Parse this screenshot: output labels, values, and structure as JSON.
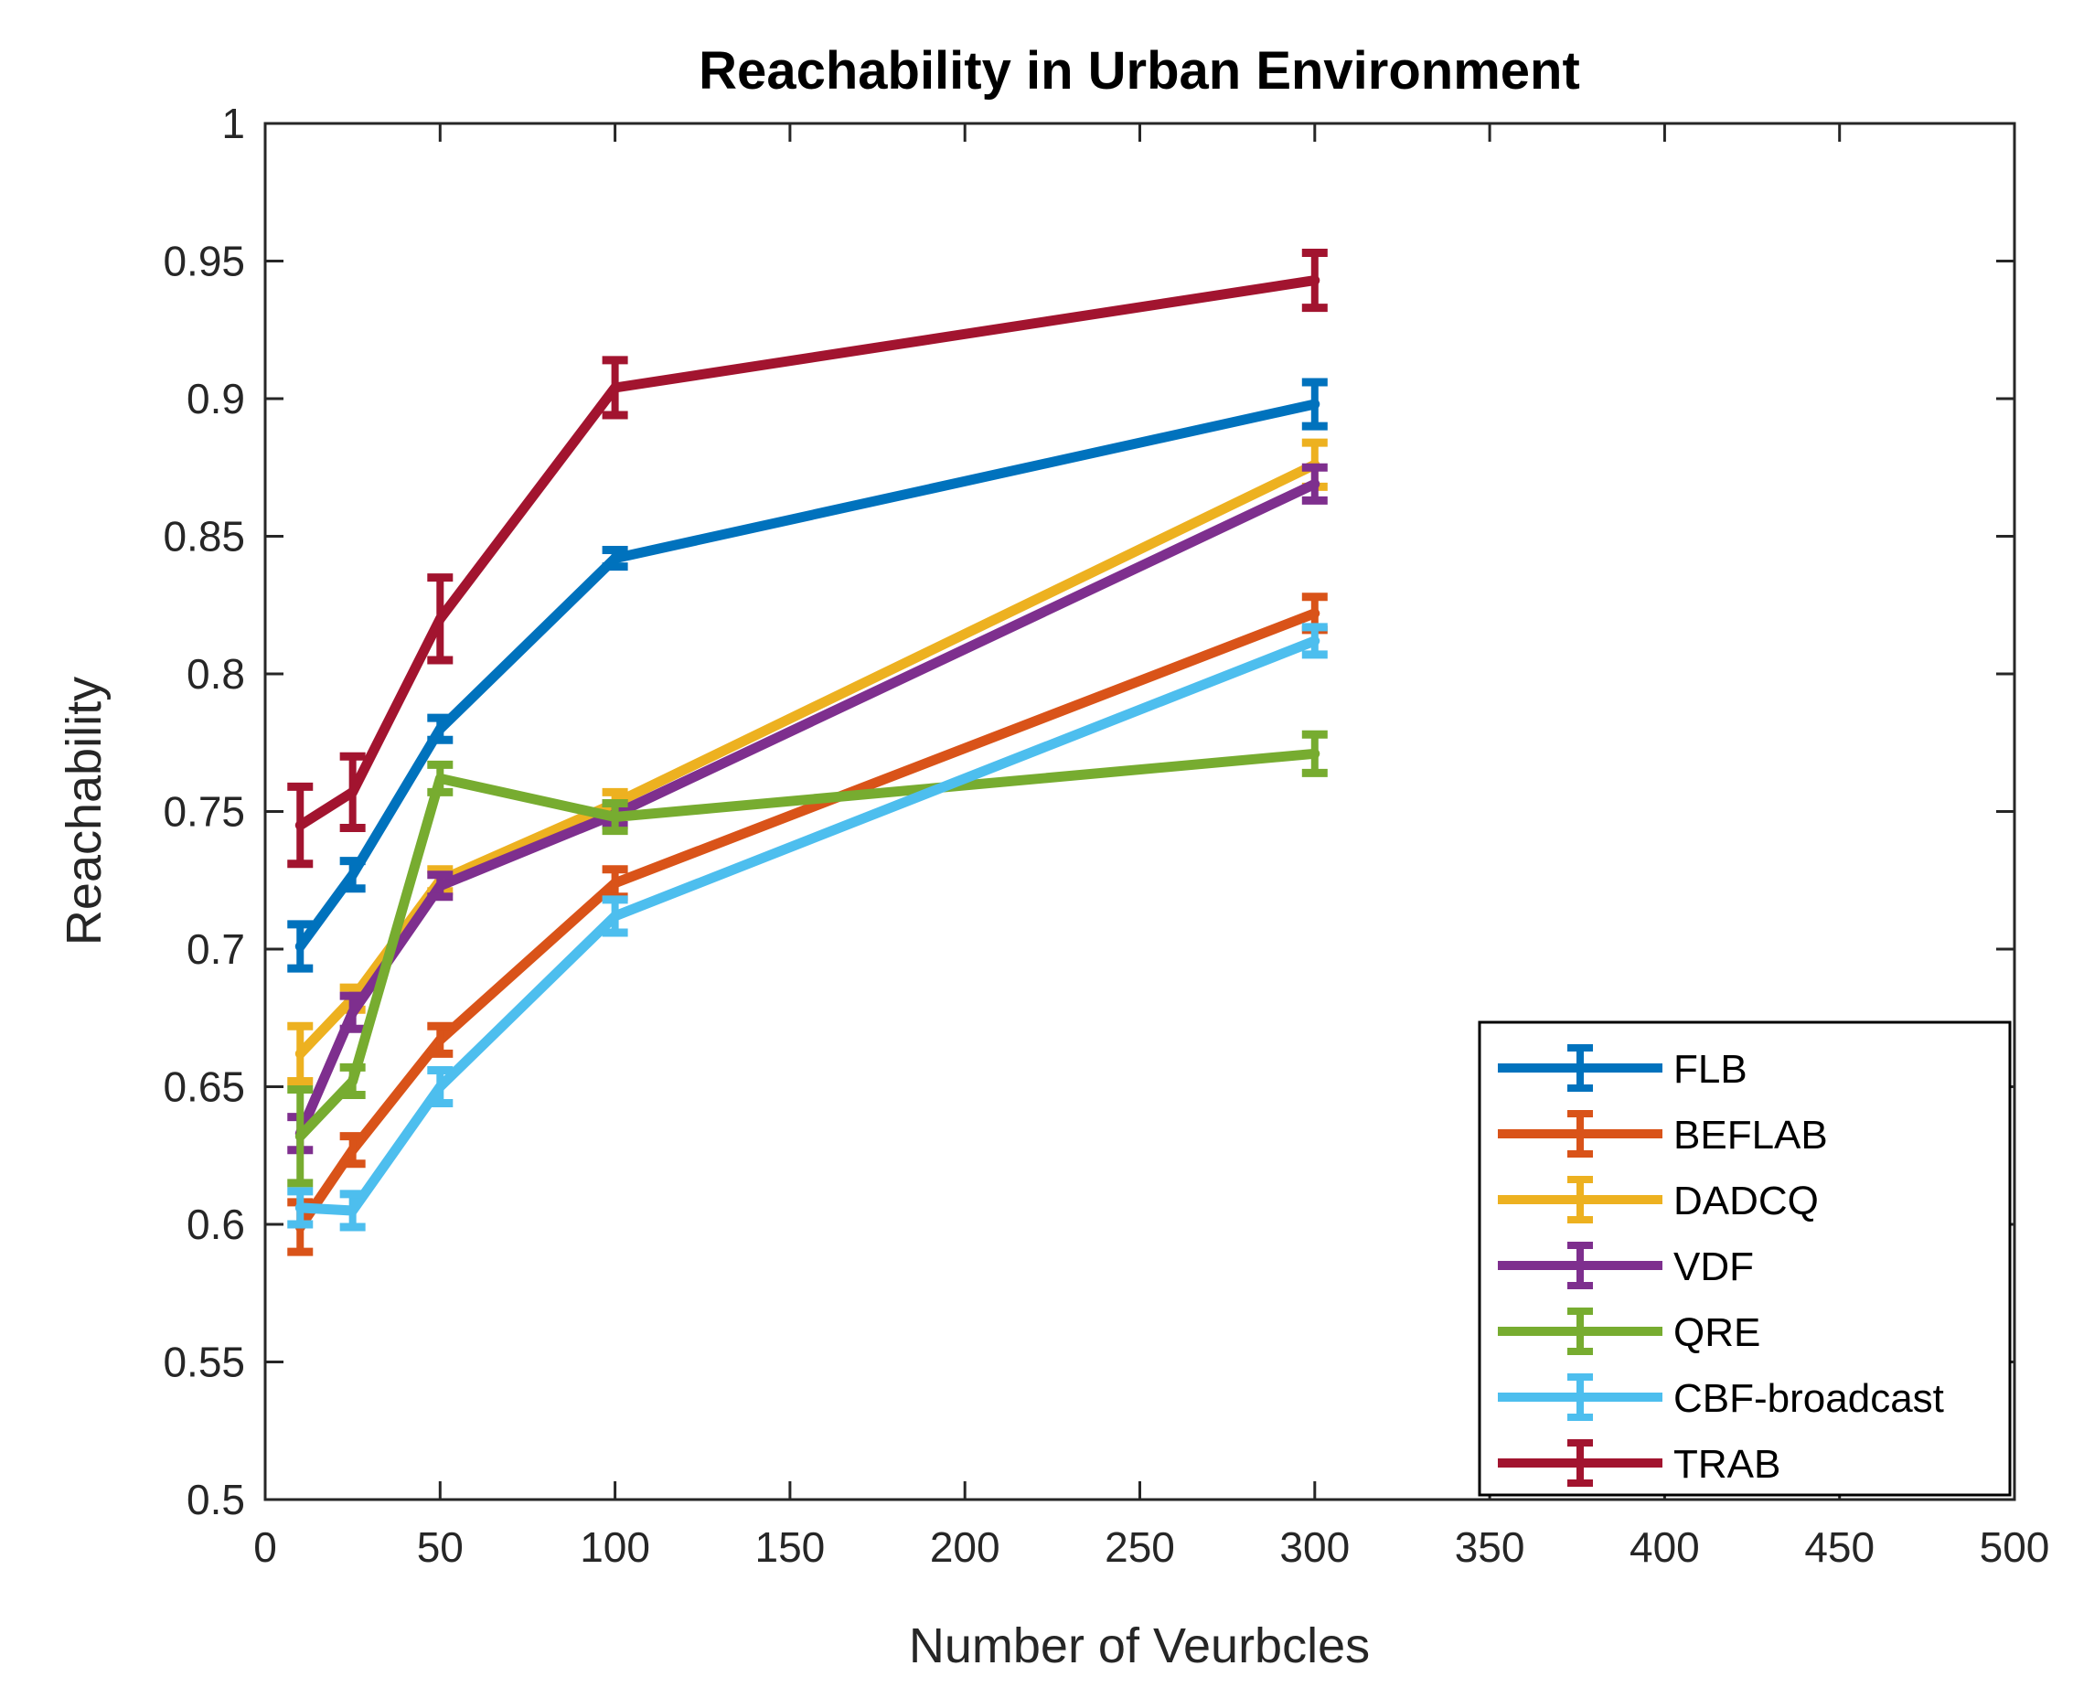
{
  "chart_data": {
    "type": "line",
    "title": "Reachability in Urban Environment",
    "xlabel": "Number of Veurbcles",
    "ylabel": "Reachability",
    "xlim": [
      0,
      500
    ],
    "ylim": [
      0.5,
      1
    ],
    "xticks": [
      0,
      50,
      100,
      150,
      200,
      250,
      300,
      350,
      400,
      450,
      500
    ],
    "xtick_labels": [
      "0",
      "50",
      "100",
      "150",
      "200",
      "250",
      "300",
      "350",
      "400",
      "450",
      "500"
    ],
    "yticks": [
      0.5,
      0.55,
      0.6,
      0.65,
      0.7,
      0.75,
      0.8,
      0.85,
      0.9,
      0.95,
      1
    ],
    "ytick_labels": [
      "0.5",
      "0.55",
      "0.6",
      "0.65",
      "0.7",
      "0.75",
      "0.8",
      "0.85",
      "0.9",
      "0.95",
      "1"
    ],
    "grid": false,
    "legend_position": "bottom-right",
    "error_bars": true,
    "x": [
      10,
      25,
      50,
      100,
      300
    ],
    "series": [
      {
        "name": "FLB",
        "color": "#0072BD",
        "values": [
          0.701,
          0.727,
          0.78,
          0.842,
          0.898
        ],
        "errors": [
          0.008,
          0.005,
          0.004,
          0.003,
          0.008
        ]
      },
      {
        "name": "BEFLAB",
        "color": "#D95319",
        "values": [
          0.599,
          0.627,
          0.667,
          0.724,
          0.822
        ],
        "errors": [
          0.009,
          0.005,
          0.005,
          0.005,
          0.006
        ]
      },
      {
        "name": "DADCQ",
        "color": "#EDB120",
        "values": [
          0.662,
          0.682,
          0.725,
          0.753,
          0.876
        ],
        "errors": [
          0.01,
          0.004,
          0.004,
          0.004,
          0.008
        ]
      },
      {
        "name": "VDF",
        "color": "#7E2F8E",
        "values": [
          0.633,
          0.677,
          0.723,
          0.749,
          0.869
        ],
        "errors": [
          0.006,
          0.006,
          0.004,
          0.004,
          0.006
        ]
      },
      {
        "name": "QRE",
        "color": "#77AC30",
        "values": [
          0.632,
          0.652,
          0.762,
          0.748,
          0.771
        ],
        "errors": [
          0.017,
          0.005,
          0.005,
          0.005,
          0.007
        ]
      },
      {
        "name": "CBF-broadcast",
        "color": "#4DBEEE",
        "values": [
          0.606,
          0.605,
          0.65,
          0.712,
          0.812
        ],
        "errors": [
          0.006,
          0.006,
          0.006,
          0.006,
          0.005
        ]
      },
      {
        "name": "TRAB",
        "color": "#A2142F",
        "values": [
          0.745,
          0.757,
          0.82,
          0.904,
          0.943
        ],
        "errors": [
          0.014,
          0.013,
          0.015,
          0.01,
          0.01
        ]
      }
    ]
  }
}
